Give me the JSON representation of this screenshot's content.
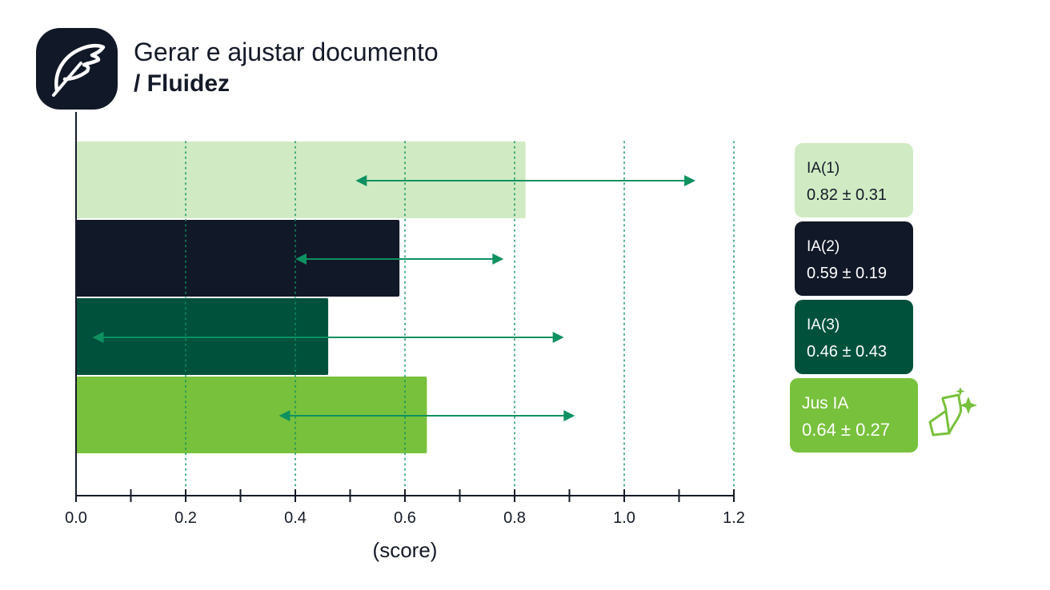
{
  "header": {
    "title_line1": "Gerar e ajustar documento",
    "title_line2": "/ Fluidez",
    "logo_icon": "feather-icon"
  },
  "chart_data": {
    "type": "bar",
    "orientation": "horizontal",
    "xlabel": "(score)",
    "xlim": [
      0,
      1.2
    ],
    "xticks": [
      "0.0",
      "0.2",
      "0.4",
      "0.6",
      "0.8",
      "1.0",
      "1.2"
    ],
    "grid": "vertical dotted",
    "series": [
      {
        "name": "IA(1)",
        "value": 0.82,
        "error": 0.31,
        "label": "0.82 ± 0.31",
        "color": "#d0ebc3",
        "text_color": "#141a28"
      },
      {
        "name": "IA(2)",
        "value": 0.59,
        "error": 0.19,
        "label": "0.59 ± 0.19",
        "color": "#111827",
        "text_color": "#ffffff"
      },
      {
        "name": "IA(3)",
        "value": 0.46,
        "error": 0.43,
        "label": "0.46 ± 0.43",
        "color": "#00513c",
        "text_color": "#ffffff"
      },
      {
        "name": "Jus IA",
        "value": 0.64,
        "error": 0.27,
        "label": "0.64 ± 0.27",
        "color": "#78c13c",
        "text_color": "#ffffff"
      }
    ],
    "error_bar_color": "#0e9160",
    "legend_position": "right"
  },
  "brand_icon": "jus-ia-sparkle-icon"
}
